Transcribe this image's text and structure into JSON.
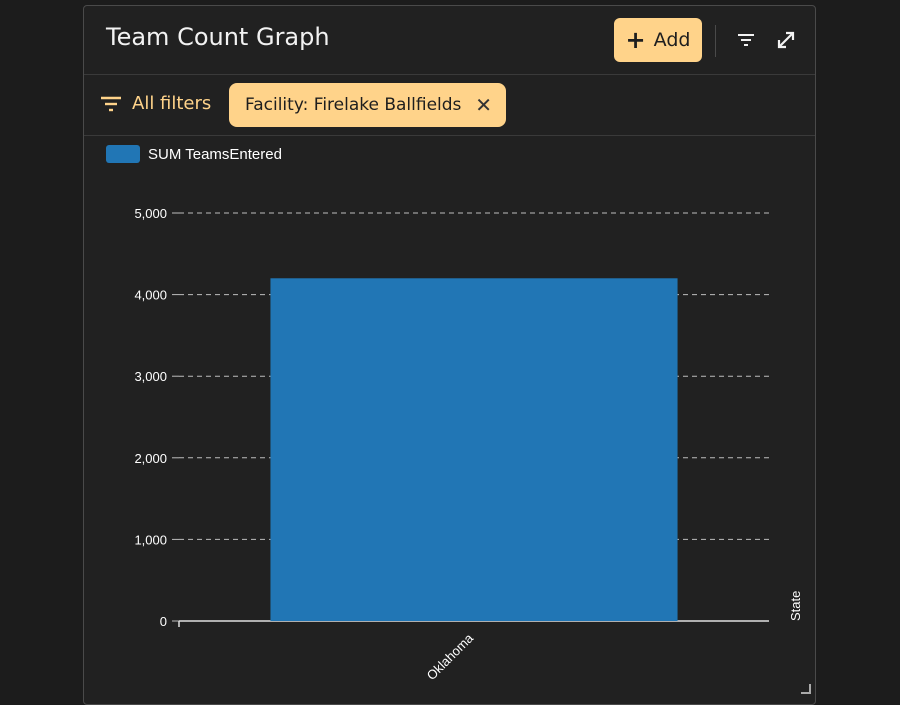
{
  "header": {
    "title": "Team Count Graph",
    "add_label": "Add",
    "icons": [
      "plus-icon",
      "filter-lines-icon",
      "expand-icon"
    ]
  },
  "filters": {
    "all_filters_label": "All filters",
    "chip_label": "Facility: Firelake Ballfields"
  },
  "colors": {
    "accent": "#ffd38a",
    "bar": "#2176b5",
    "background": "#212121"
  },
  "chart_data": {
    "type": "bar",
    "categories": [
      "Oklahoma"
    ],
    "series": [
      {
        "name": "SUM TeamsEntered",
        "values": [
          4200
        ]
      }
    ],
    "title": "",
    "xlabel": "State",
    "ylabel": "",
    "ylim": [
      0,
      5000
    ],
    "yticks": [
      0,
      1000,
      2000,
      3000,
      4000,
      5000
    ],
    "ytick_labels": [
      "0",
      "1,000",
      "2,000",
      "3,000",
      "4,000",
      "5,000"
    ],
    "grid": true,
    "legend": "top-left"
  }
}
